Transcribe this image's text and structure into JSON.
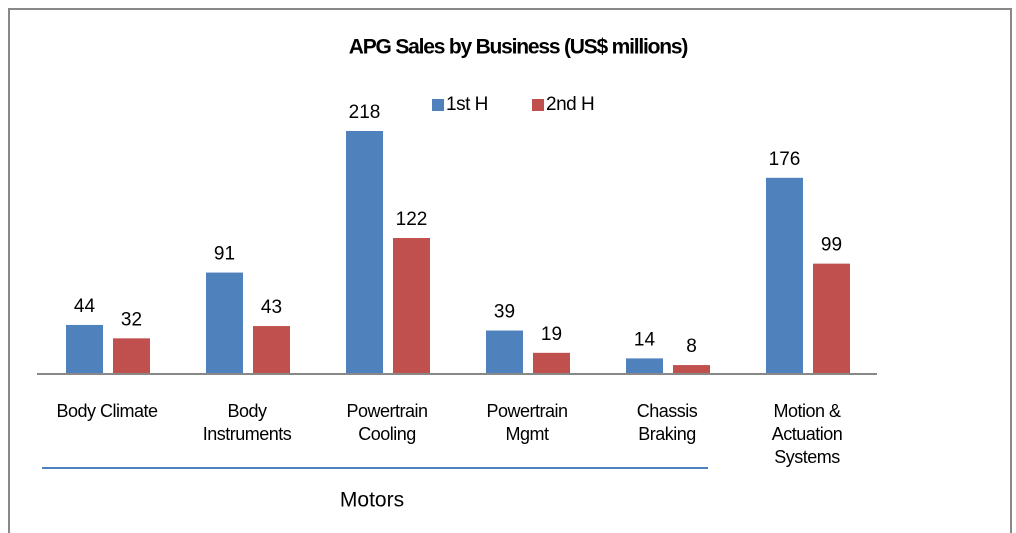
{
  "chart_data": {
    "type": "bar",
    "title": "APG Sales by Business (US$ millions)",
    "categories": [
      "Body Climate",
      "Body\nInstruments",
      "Powertrain\nCooling",
      "Powertrain\nMgmt",
      "Chassis\nBraking",
      "Motion &\nActuation\nSystems"
    ],
    "series": [
      {
        "name": "1st H",
        "color": "#4f81bd",
        "values": [
          44,
          91,
          218,
          39,
          14,
          176
        ]
      },
      {
        "name": "2nd H",
        "color": "#c0504d",
        "values": [
          32,
          43,
          122,
          19,
          8,
          99
        ]
      }
    ],
    "groups": [
      {
        "label": "Motors",
        "count": 5
      }
    ],
    "legend": "top"
  }
}
